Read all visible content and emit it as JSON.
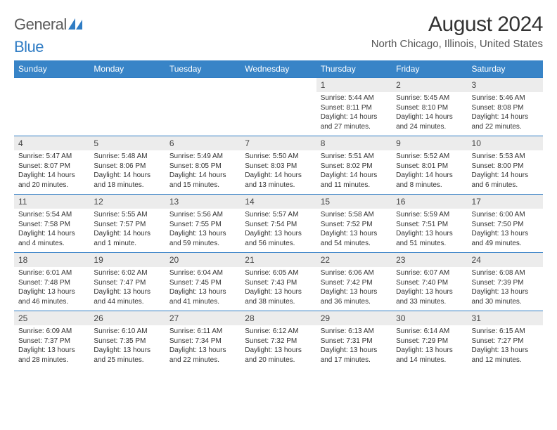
{
  "logo": {
    "text1": "General",
    "text2": "Blue"
  },
  "title": "August 2024",
  "location": "North Chicago, Illinois, United States",
  "colors": {
    "header_bg": "#3884c7",
    "header_text": "#ffffff",
    "daynum_bg": "#ececec",
    "border_top": "#2f7cc4",
    "body_text": "#333333",
    "logo_gray": "#5a5a5a",
    "logo_blue": "#2f7cc4"
  },
  "weekdays": [
    "Sunday",
    "Monday",
    "Tuesday",
    "Wednesday",
    "Thursday",
    "Friday",
    "Saturday"
  ],
  "weeks": [
    [
      null,
      null,
      null,
      null,
      {
        "n": "1",
        "sr": "5:44 AM",
        "ss": "8:11 PM",
        "dl": "14 hours and 27 minutes."
      },
      {
        "n": "2",
        "sr": "5:45 AM",
        "ss": "8:10 PM",
        "dl": "14 hours and 24 minutes."
      },
      {
        "n": "3",
        "sr": "5:46 AM",
        "ss": "8:08 PM",
        "dl": "14 hours and 22 minutes."
      }
    ],
    [
      {
        "n": "4",
        "sr": "5:47 AM",
        "ss": "8:07 PM",
        "dl": "14 hours and 20 minutes."
      },
      {
        "n": "5",
        "sr": "5:48 AM",
        "ss": "8:06 PM",
        "dl": "14 hours and 18 minutes."
      },
      {
        "n": "6",
        "sr": "5:49 AM",
        "ss": "8:05 PM",
        "dl": "14 hours and 15 minutes."
      },
      {
        "n": "7",
        "sr": "5:50 AM",
        "ss": "8:03 PM",
        "dl": "14 hours and 13 minutes."
      },
      {
        "n": "8",
        "sr": "5:51 AM",
        "ss": "8:02 PM",
        "dl": "14 hours and 11 minutes."
      },
      {
        "n": "9",
        "sr": "5:52 AM",
        "ss": "8:01 PM",
        "dl": "14 hours and 8 minutes."
      },
      {
        "n": "10",
        "sr": "5:53 AM",
        "ss": "8:00 PM",
        "dl": "14 hours and 6 minutes."
      }
    ],
    [
      {
        "n": "11",
        "sr": "5:54 AM",
        "ss": "7:58 PM",
        "dl": "14 hours and 4 minutes."
      },
      {
        "n": "12",
        "sr": "5:55 AM",
        "ss": "7:57 PM",
        "dl": "14 hours and 1 minute."
      },
      {
        "n": "13",
        "sr": "5:56 AM",
        "ss": "7:55 PM",
        "dl": "13 hours and 59 minutes."
      },
      {
        "n": "14",
        "sr": "5:57 AM",
        "ss": "7:54 PM",
        "dl": "13 hours and 56 minutes."
      },
      {
        "n": "15",
        "sr": "5:58 AM",
        "ss": "7:52 PM",
        "dl": "13 hours and 54 minutes."
      },
      {
        "n": "16",
        "sr": "5:59 AM",
        "ss": "7:51 PM",
        "dl": "13 hours and 51 minutes."
      },
      {
        "n": "17",
        "sr": "6:00 AM",
        "ss": "7:50 PM",
        "dl": "13 hours and 49 minutes."
      }
    ],
    [
      {
        "n": "18",
        "sr": "6:01 AM",
        "ss": "7:48 PM",
        "dl": "13 hours and 46 minutes."
      },
      {
        "n": "19",
        "sr": "6:02 AM",
        "ss": "7:47 PM",
        "dl": "13 hours and 44 minutes."
      },
      {
        "n": "20",
        "sr": "6:04 AM",
        "ss": "7:45 PM",
        "dl": "13 hours and 41 minutes."
      },
      {
        "n": "21",
        "sr": "6:05 AM",
        "ss": "7:43 PM",
        "dl": "13 hours and 38 minutes."
      },
      {
        "n": "22",
        "sr": "6:06 AM",
        "ss": "7:42 PM",
        "dl": "13 hours and 36 minutes."
      },
      {
        "n": "23",
        "sr": "6:07 AM",
        "ss": "7:40 PM",
        "dl": "13 hours and 33 minutes."
      },
      {
        "n": "24",
        "sr": "6:08 AM",
        "ss": "7:39 PM",
        "dl": "13 hours and 30 minutes."
      }
    ],
    [
      {
        "n": "25",
        "sr": "6:09 AM",
        "ss": "7:37 PM",
        "dl": "13 hours and 28 minutes."
      },
      {
        "n": "26",
        "sr": "6:10 AM",
        "ss": "7:35 PM",
        "dl": "13 hours and 25 minutes."
      },
      {
        "n": "27",
        "sr": "6:11 AM",
        "ss": "7:34 PM",
        "dl": "13 hours and 22 minutes."
      },
      {
        "n": "28",
        "sr": "6:12 AM",
        "ss": "7:32 PM",
        "dl": "13 hours and 20 minutes."
      },
      {
        "n": "29",
        "sr": "6:13 AM",
        "ss": "7:31 PM",
        "dl": "13 hours and 17 minutes."
      },
      {
        "n": "30",
        "sr": "6:14 AM",
        "ss": "7:29 PM",
        "dl": "13 hours and 14 minutes."
      },
      {
        "n": "31",
        "sr": "6:15 AM",
        "ss": "7:27 PM",
        "dl": "13 hours and 12 minutes."
      }
    ]
  ],
  "labels": {
    "sunrise": "Sunrise:",
    "sunset": "Sunset:",
    "daylight": "Daylight:"
  }
}
